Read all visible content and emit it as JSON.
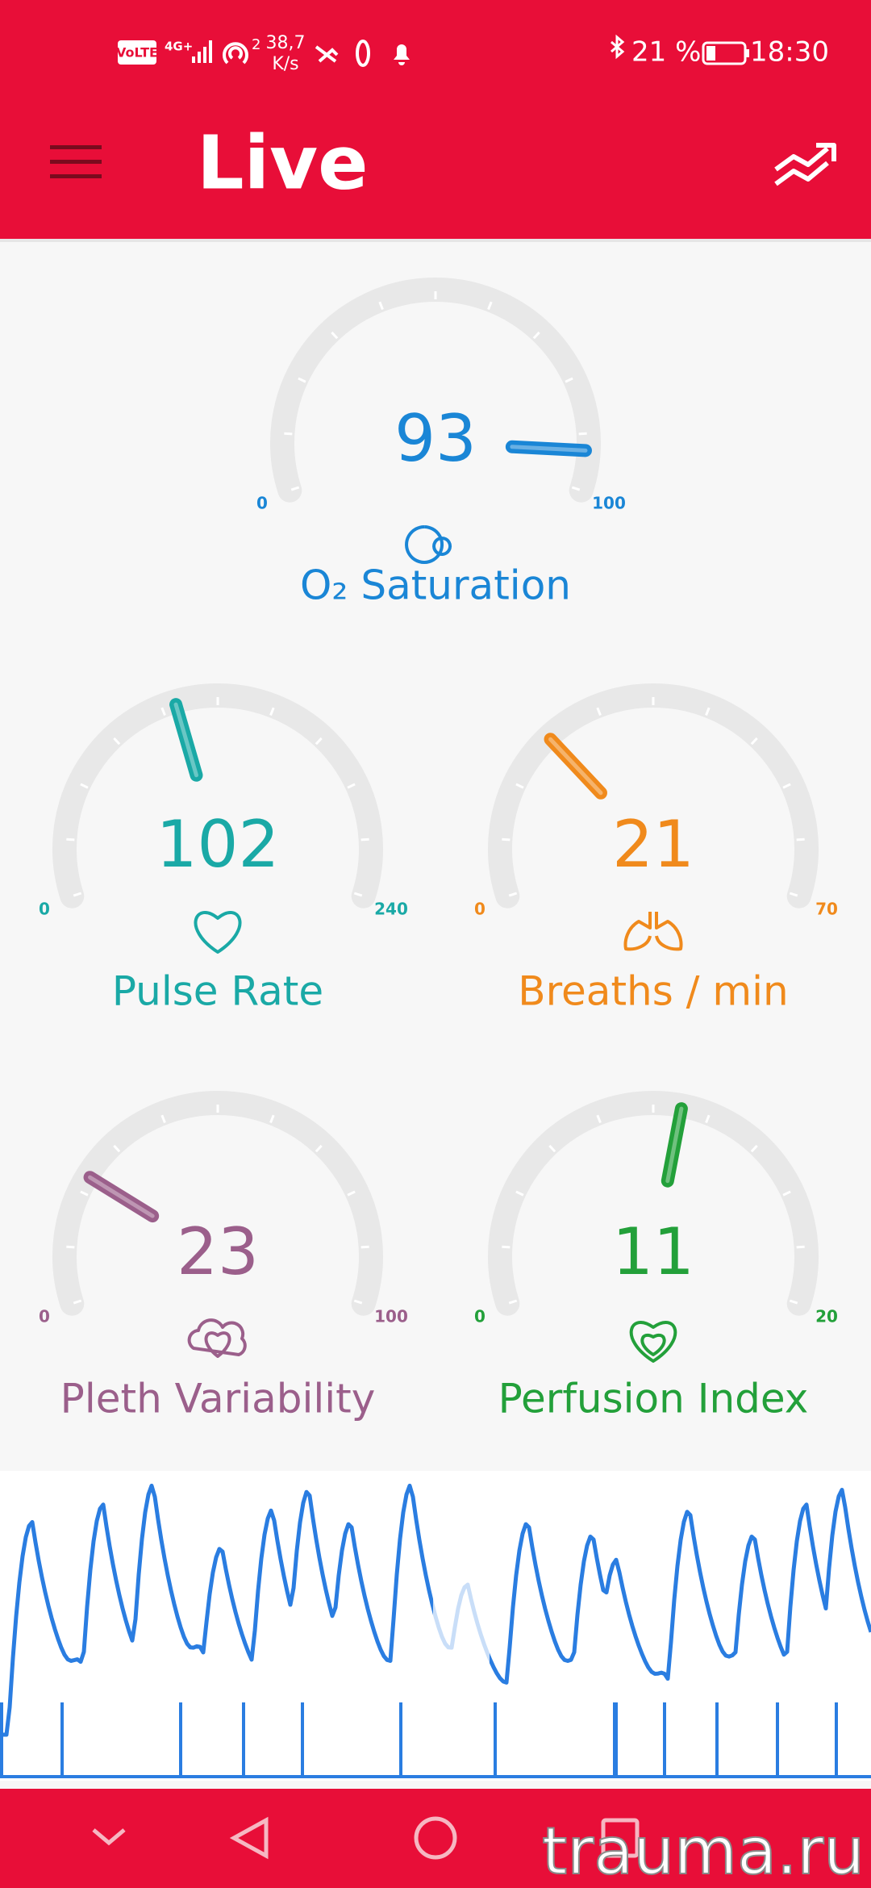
{
  "status_bar": {
    "volte": "VoLTE",
    "network": "4G+",
    "hotspot": "2",
    "speed": "38,7",
    "speed_unit": "K/s",
    "battery": "21 %",
    "time": "18:30"
  },
  "app_bar": {
    "title": "Live"
  },
  "gauges": [
    {
      "label": "O₂ Saturation",
      "value": 93,
      "min": 0,
      "max": 100,
      "color": "#1a86d6"
    },
    {
      "label": "Pulse Rate",
      "value": 102,
      "min": 0,
      "max": 240,
      "color": "#1aa9a6"
    },
    {
      "label": "Breaths / min",
      "value": 21,
      "min": 0,
      "max": 70,
      "color": "#f08a1c"
    },
    {
      "label": "Pleth Variability",
      "value": 23,
      "min": 0,
      "max": 100,
      "color": "#9b5f8b"
    },
    {
      "label": "Perfusion Index",
      "value": 11,
      "min": 0,
      "max": 20,
      "color": "#23a03a"
    }
  ],
  "watermark": "trauma.ru"
}
